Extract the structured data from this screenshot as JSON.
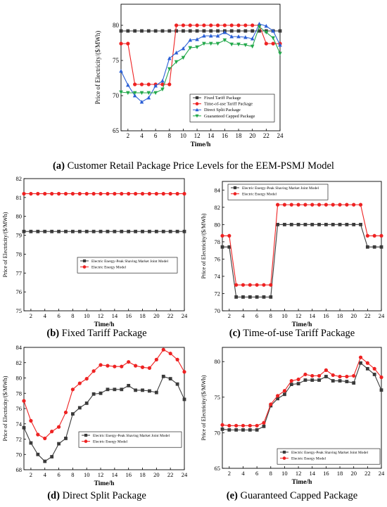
{
  "colors": {
    "black": "#3a3a3a",
    "red": "#ee2222",
    "blue": "#2a5fd6",
    "green": "#22a84a"
  },
  "panels": [
    {
      "caption": {
        "letter": "(a)",
        "text": " Customer Retail Package Price Levels for the EEM-PSMJ Model"
      },
      "chart_data": {
        "type": "line",
        "xlabel": "Time/h",
        "ylabel": "Price of Electricity/($/MWh)",
        "xlim": [
          1,
          24
        ],
        "ylim": [
          65,
          83
        ],
        "xticks": [
          2,
          4,
          6,
          8,
          10,
          12,
          14,
          16,
          18,
          20,
          22,
          24
        ],
        "yticks": [
          65,
          70,
          75,
          80
        ],
        "legend_position": "center-right",
        "x": [
          1,
          2,
          3,
          4,
          5,
          6,
          7,
          8,
          9,
          10,
          11,
          12,
          13,
          14,
          15,
          16,
          17,
          18,
          19,
          20,
          21,
          22,
          23,
          24
        ],
        "series": [
          {
            "name": "Fixed Tariff Package",
            "color": "black",
            "marker": "square",
            "values": [
              79.2,
              79.2,
              79.2,
              79.2,
              79.2,
              79.2,
              79.2,
              79.2,
              79.2,
              79.2,
              79.2,
              79.2,
              79.2,
              79.2,
              79.2,
              79.2,
              79.2,
              79.2,
              79.2,
              79.2,
              79.2,
              79.2,
              79.2,
              79.2
            ]
          },
          {
            "name": "Time-of-use Tariff Package",
            "color": "red",
            "marker": "circle",
            "values": [
              77.4,
              77.4,
              71.6,
              71.6,
              71.6,
              71.6,
              71.6,
              71.6,
              80.0,
              80.0,
              80.0,
              80.0,
              80.0,
              80.0,
              80.0,
              80.0,
              80.0,
              80.0,
              80.0,
              80.0,
              80.0,
              77.4,
              77.4,
              77.4
            ]
          },
          {
            "name": "Direct Split Package",
            "color": "blue",
            "marker": "triangle-up",
            "values": [
              73.5,
              71.5,
              70.0,
              69.1,
              69.7,
              71.4,
              72.1,
              75.3,
              76.1,
              76.7,
              77.9,
              78.0,
              78.5,
              78.5,
              78.5,
              79.0,
              78.4,
              78.4,
              78.3,
              78.1,
              80.2,
              79.9,
              79.2,
              77.2
            ]
          },
          {
            "name": "Guaranteed Capped Package",
            "color": "green",
            "marker": "triangle-down",
            "values": [
              70.5,
              70.4,
              70.4,
              70.4,
              70.4,
              70.4,
              70.9,
              73.8,
              74.8,
              75.4,
              76.8,
              76.9,
              77.4,
              77.4,
              77.4,
              77.9,
              77.3,
              77.3,
              77.2,
              77.0,
              79.8,
              79.0,
              78.2,
              76.0
            ]
          }
        ]
      }
    },
    {
      "caption": {
        "letter": "(b)",
        "text": " Fixed Tariff Package"
      },
      "chart_data": {
        "type": "line",
        "xlabel": "Time/h",
        "ylabel": "Price of Electricity/($/MWh)",
        "xlim": [
          1,
          24
        ],
        "ylim": [
          75,
          82
        ],
        "xticks": [
          2,
          4,
          6,
          8,
          10,
          12,
          14,
          16,
          18,
          20,
          22,
          24
        ],
        "yticks": [
          75,
          76,
          77,
          78,
          79,
          80,
          81,
          82
        ],
        "legend_position": "center-right",
        "x": [
          1,
          2,
          3,
          4,
          5,
          6,
          7,
          8,
          9,
          10,
          11,
          12,
          13,
          14,
          15,
          16,
          17,
          18,
          19,
          20,
          21,
          22,
          23,
          24
        ],
        "series": [
          {
            "name": "Electric Energy-Peak Shaving Market Joint Model",
            "color": "black",
            "marker": "square",
            "values": [
              79.2,
              79.2,
              79.2,
              79.2,
              79.2,
              79.2,
              79.2,
              79.2,
              79.2,
              79.2,
              79.2,
              79.2,
              79.2,
              79.2,
              79.2,
              79.2,
              79.2,
              79.2,
              79.2,
              79.2,
              79.2,
              79.2,
              79.2,
              79.2
            ]
          },
          {
            "name": "Electric Energy Model",
            "color": "red",
            "marker": "circle",
            "values": [
              81.2,
              81.2,
              81.2,
              81.2,
              81.2,
              81.2,
              81.2,
              81.2,
              81.2,
              81.2,
              81.2,
              81.2,
              81.2,
              81.2,
              81.2,
              81.2,
              81.2,
              81.2,
              81.2,
              81.2,
              81.2,
              81.2,
              81.2,
              81.2
            ]
          }
        ]
      }
    },
    {
      "caption": {
        "letter": "(c)",
        "text": " Time-of-use Tariff Package"
      },
      "chart_data": {
        "type": "line",
        "xlabel": "Time/h",
        "ylabel": "Price of Electricity/($/MWh)",
        "xlim": [
          1,
          24
        ],
        "ylim": [
          70,
          85
        ],
        "xticks": [
          2,
          4,
          6,
          8,
          10,
          12,
          14,
          16,
          18,
          20,
          22,
          24
        ],
        "yticks": [
          70,
          72,
          74,
          76,
          78,
          80,
          82,
          84
        ],
        "legend_position": "top-left",
        "x": [
          1,
          2,
          3,
          4,
          5,
          6,
          7,
          8,
          9,
          10,
          11,
          12,
          13,
          14,
          15,
          16,
          17,
          18,
          19,
          20,
          21,
          22,
          23,
          24
        ],
        "series": [
          {
            "name": "Electric Energy-Peak Shaving Market Joint Model",
            "color": "black",
            "marker": "square",
            "values": [
              77.4,
              77.4,
              71.6,
              71.6,
              71.6,
              71.6,
              71.6,
              71.6,
              80.0,
              80.0,
              80.0,
              80.0,
              80.0,
              80.0,
              80.0,
              80.0,
              80.0,
              80.0,
              80.0,
              80.0,
              80.0,
              77.4,
              77.4,
              77.4
            ]
          },
          {
            "name": "Electric Energy Model",
            "color": "red",
            "marker": "circle",
            "values": [
              78.7,
              78.7,
              73.0,
              73.0,
              73.0,
              73.0,
              73.0,
              73.0,
              82.3,
              82.3,
              82.3,
              82.3,
              82.3,
              82.3,
              82.3,
              82.3,
              82.3,
              82.3,
              82.3,
              82.3,
              82.3,
              78.7,
              78.7,
              78.7
            ]
          }
        ]
      }
    },
    {
      "caption": {
        "letter": "(d)",
        "text": " Direct Split Package"
      },
      "chart_data": {
        "type": "line",
        "xlabel": "Time/h",
        "ylabel": "Price of Electricity/($/MWh)",
        "xlim": [
          1,
          24
        ],
        "ylim": [
          68,
          84
        ],
        "xticks": [
          2,
          4,
          6,
          8,
          10,
          12,
          14,
          16,
          18,
          20,
          22,
          24
        ],
        "yticks": [
          68,
          70,
          72,
          74,
          76,
          78,
          80,
          82,
          84
        ],
        "legend_position": "bottom-right",
        "x": [
          1,
          2,
          3,
          4,
          5,
          6,
          7,
          8,
          9,
          10,
          11,
          12,
          13,
          14,
          15,
          16,
          17,
          18,
          19,
          20,
          21,
          22,
          23,
          24
        ],
        "series": [
          {
            "name": "Electric Energy-Peak Shaving Market Joint Model",
            "color": "black",
            "marker": "square",
            "values": [
              73.5,
              71.5,
              70.0,
              69.1,
              69.7,
              71.4,
              72.1,
              75.3,
              76.1,
              76.7,
              77.9,
              78.0,
              78.5,
              78.5,
              78.5,
              79.0,
              78.4,
              78.4,
              78.3,
              78.1,
              80.2,
              79.9,
              79.2,
              77.2
            ]
          },
          {
            "name": "Electric Energy Model",
            "color": "red",
            "marker": "circle",
            "values": [
              77.0,
              74.4,
              72.6,
              72.1,
              73.0,
              73.6,
              75.5,
              78.5,
              79.3,
              79.9,
              80.9,
              81.7,
              81.6,
              81.5,
              81.5,
              82.1,
              81.6,
              81.4,
              81.3,
              82.4,
              83.7,
              83.2,
              82.4,
              80.8
            ]
          }
        ]
      }
    },
    {
      "caption": {
        "letter": "(e)",
        "text": " Guaranteed Capped Package"
      },
      "chart_data": {
        "type": "line",
        "xlabel": "Time/h",
        "ylabel": "Price of Electricity/($/MWh)",
        "xlim": [
          1,
          24
        ],
        "ylim": [
          65,
          82
        ],
        "xticks": [
          2,
          4,
          6,
          8,
          10,
          12,
          14,
          16,
          18,
          20,
          22,
          24
        ],
        "yticks": [
          65,
          70,
          75,
          80
        ],
        "legend_position": "bottom-right",
        "x": [
          1,
          2,
          3,
          4,
          5,
          6,
          7,
          8,
          9,
          10,
          11,
          12,
          13,
          14,
          15,
          16,
          17,
          18,
          19,
          20,
          21,
          22,
          23,
          24
        ],
        "series": [
          {
            "name": "Electric Energy-Peak Shaving Market Joint Model",
            "color": "black",
            "marker": "square",
            "values": [
              70.5,
              70.4,
              70.4,
              70.4,
              70.4,
              70.4,
              70.9,
              73.8,
              74.8,
              75.4,
              76.8,
              76.9,
              77.4,
              77.4,
              77.4,
              77.9,
              77.3,
              77.3,
              77.2,
              77.0,
              79.8,
              79.0,
              78.2,
              76.0
            ]
          },
          {
            "name": "Electric Energy Model",
            "color": "red",
            "marker": "circle",
            "values": [
              71.1,
              71.0,
              71.0,
              71.0,
              71.0,
              71.0,
              71.4,
              74.0,
              75.2,
              75.9,
              77.3,
              77.5,
              78.2,
              78.0,
              78.0,
              78.8,
              78.1,
              77.9,
              77.9,
              78.0,
              80.6,
              79.8,
              79.0,
              77.8
            ]
          }
        ]
      }
    }
  ]
}
